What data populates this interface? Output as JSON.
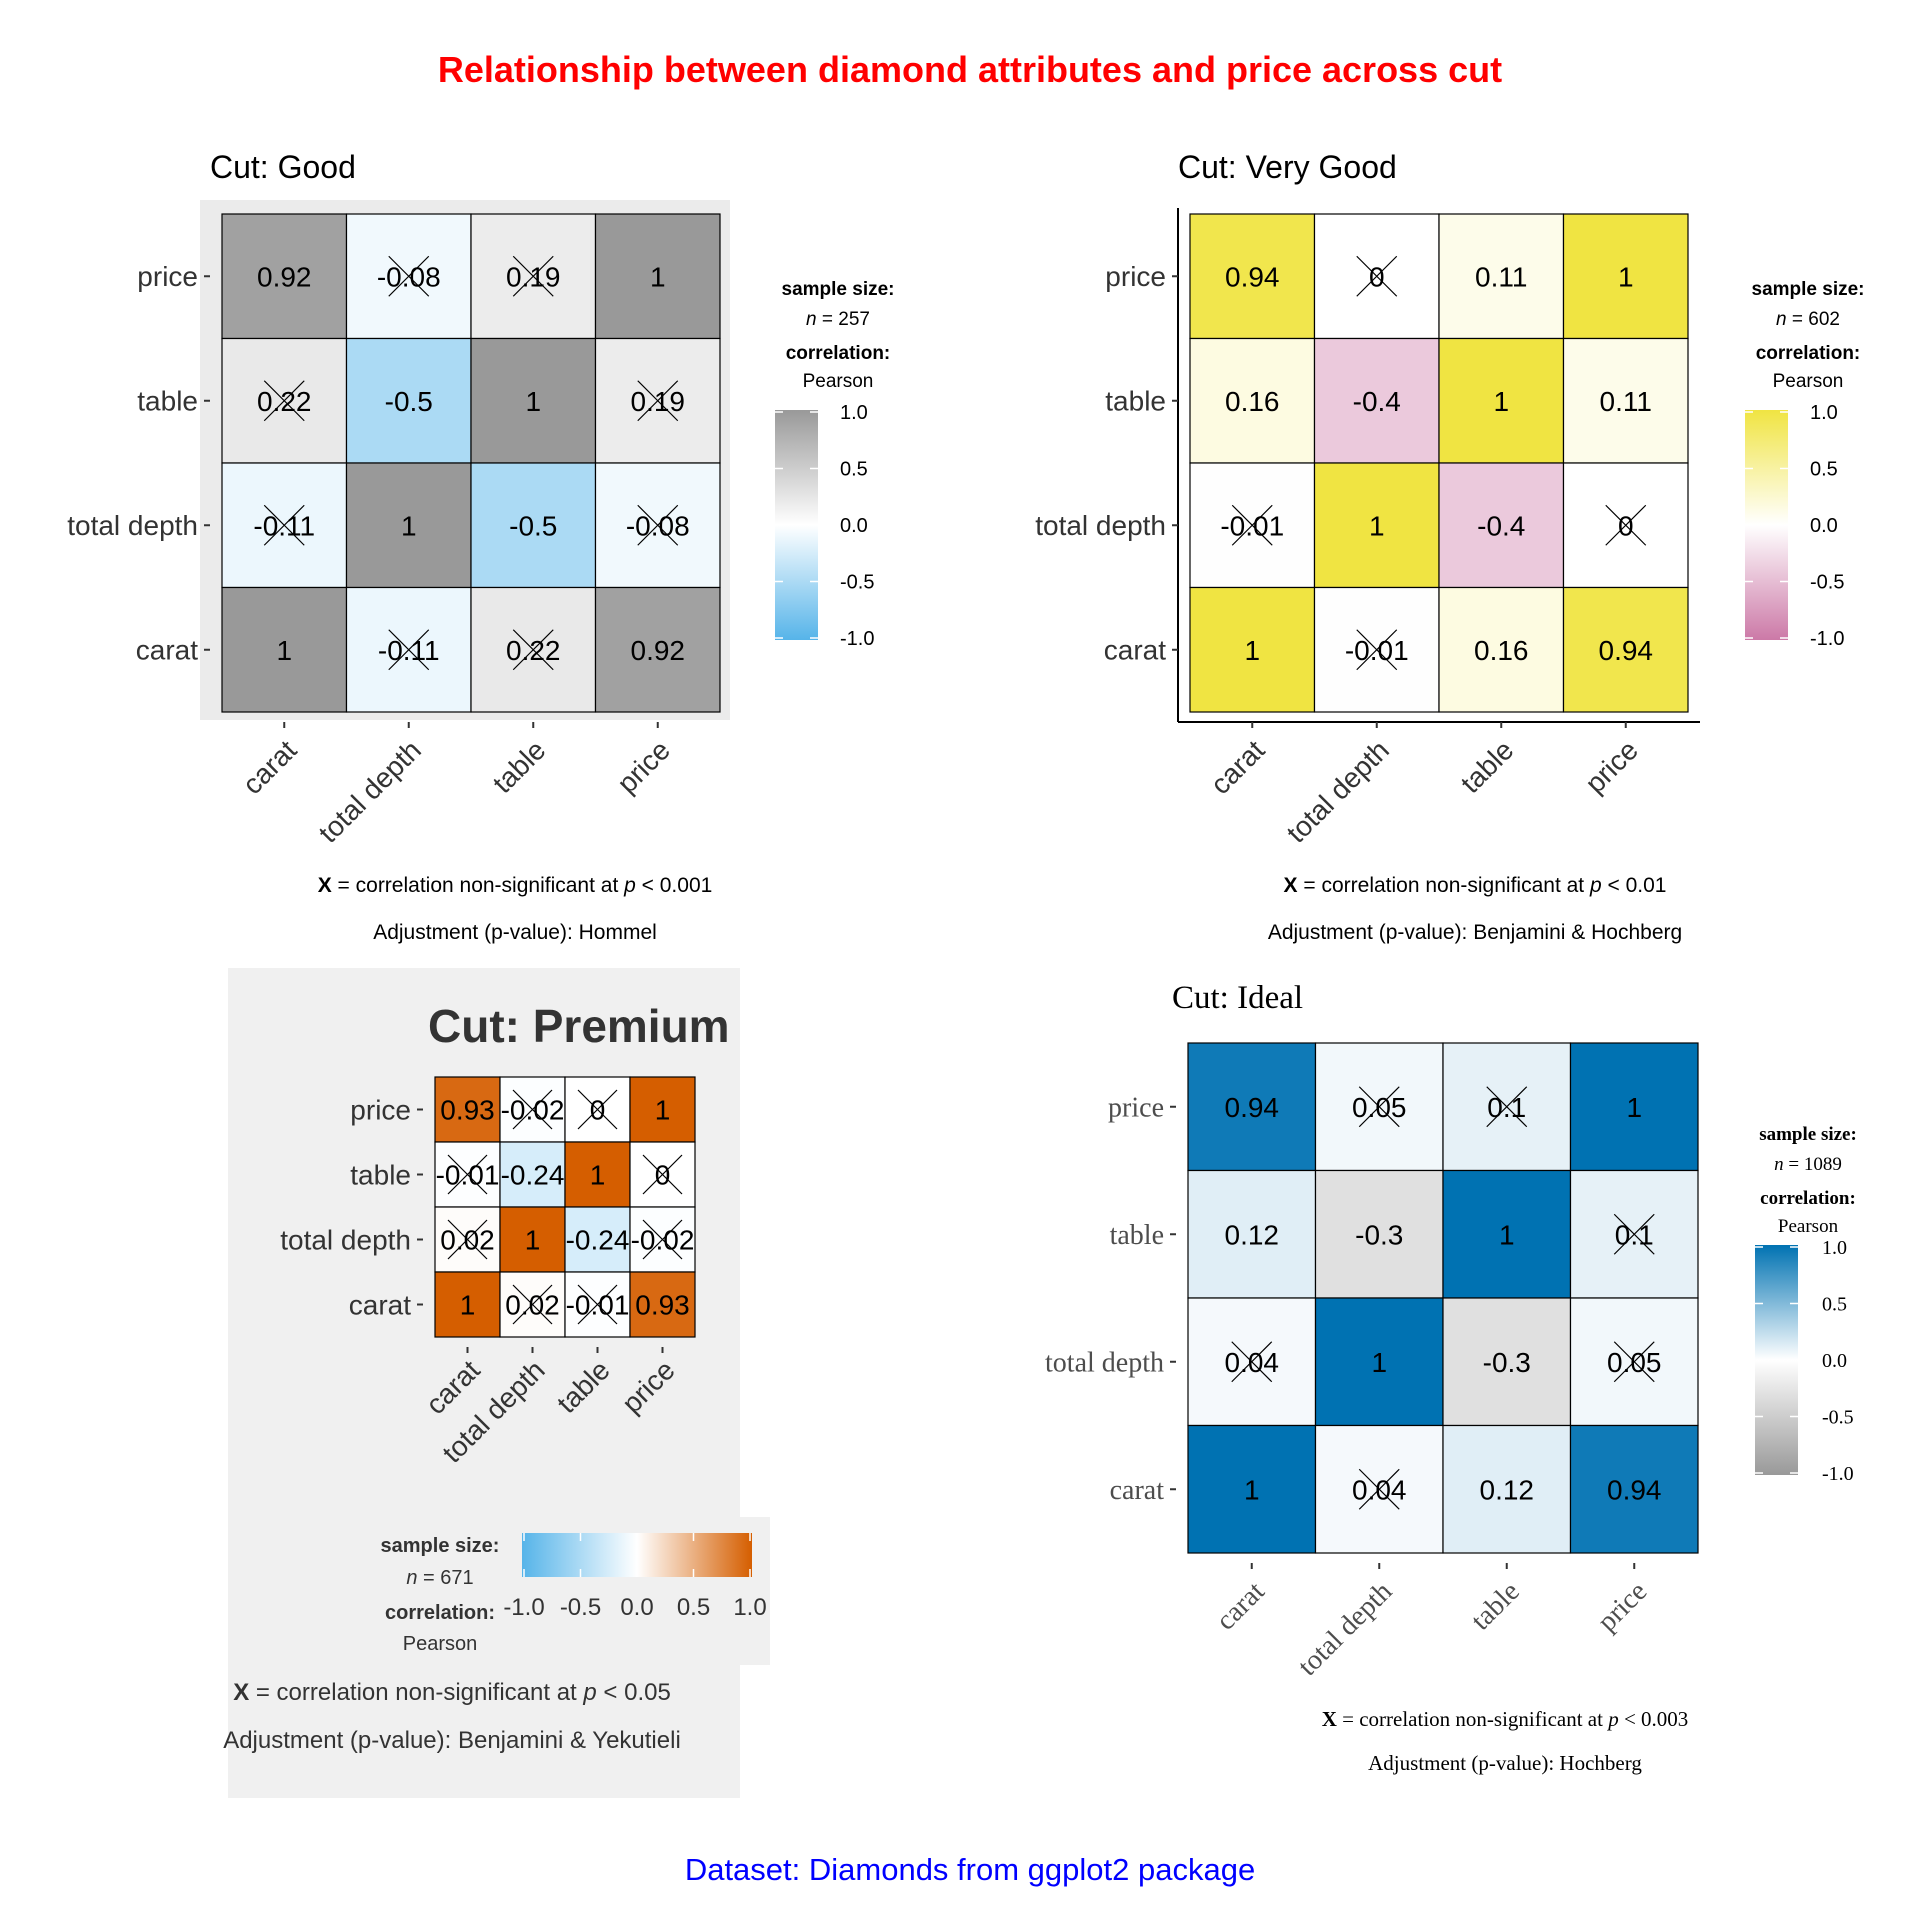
{
  "title": "Relationship between diamond attributes and price across cut",
  "caption": "Dataset: Diamonds from ggplot2 package",
  "colors": {
    "title": "#ff0000",
    "caption": "#0000ff"
  },
  "variables": [
    "carat",
    "total depth",
    "table",
    "price"
  ],
  "chart_data": [
    {
      "type": "heatmap",
      "title": "Cut: Good",
      "x": [
        "carat",
        "total depth",
        "table",
        "price"
      ],
      "y": [
        "carat",
        "total depth",
        "table",
        "price"
      ],
      "matrix": [
        [
          1,
          -0.11,
          0.22,
          0.92
        ],
        [
          -0.11,
          1,
          -0.5,
          -0.08
        ],
        [
          0.22,
          -0.5,
          1,
          0.19
        ],
        [
          0.92,
          -0.08,
          0.19,
          1
        ]
      ],
      "labels": [
        [
          "1",
          "-0.11",
          "0.22",
          "0.92"
        ],
        [
          "-0.11",
          "1",
          "-0.5",
          "-0.08"
        ],
        [
          "0.22",
          "-0.5",
          "1",
          "0.19"
        ],
        [
          "0.92",
          "-0.08",
          "0.19",
          "1"
        ]
      ],
      "nonsignificant": [
        [
          false,
          true,
          true,
          false
        ],
        [
          true,
          false,
          false,
          true
        ],
        [
          true,
          false,
          false,
          true
        ],
        [
          false,
          true,
          true,
          false
        ]
      ],
      "colors": {
        "low": "#56B4E9",
        "mid": "#FFFFFF",
        "high": "#999999"
      },
      "legend": {
        "sample_size_label": "sample size:",
        "n_label": "n",
        "n_value": "= 257",
        "correlation_label": "correlation:",
        "method": "Pearson",
        "ticks": [
          "1.0",
          "0.5",
          "0.0",
          "-0.5",
          "-1.0"
        ]
      },
      "caption_x_label": "X",
      "caption_text": "= correlation non-significant at",
      "caption_p": "p",
      "caption_threshold": "< 0.001",
      "adjustment": "Adjustment (p-value): Hommel"
    },
    {
      "type": "heatmap",
      "title": "Cut: Very Good",
      "x": [
        "carat",
        "total depth",
        "table",
        "price"
      ],
      "y": [
        "carat",
        "total depth",
        "table",
        "price"
      ],
      "matrix": [
        [
          1,
          -0.01,
          0.16,
          0.94
        ],
        [
          -0.01,
          1,
          -0.4,
          0
        ],
        [
          0.16,
          -0.4,
          1,
          0.11
        ],
        [
          0.94,
          0,
          0.11,
          1
        ]
      ],
      "labels": [
        [
          "1",
          "-0.01",
          "0.16",
          "0.94"
        ],
        [
          "-0.01",
          "1",
          "-0.4",
          "0"
        ],
        [
          "0.16",
          "-0.4",
          "1",
          "0.11"
        ],
        [
          "0.94",
          "0",
          "0.11",
          "1"
        ]
      ],
      "nonsignificant": [
        [
          false,
          true,
          false,
          false
        ],
        [
          true,
          false,
          false,
          true
        ],
        [
          false,
          false,
          false,
          false
        ],
        [
          false,
          true,
          false,
          false
        ]
      ],
      "colors": {
        "low": "#CC79A7",
        "mid": "#FFFFFF",
        "high": "#F0E442"
      },
      "legend": {
        "sample_size_label": "sample size:",
        "n_label": "n",
        "n_value": "= 602",
        "correlation_label": "correlation:",
        "method": "Pearson",
        "ticks": [
          "1.0",
          "0.5",
          "0.0",
          "-0.5",
          "-1.0"
        ]
      },
      "caption_x_label": "X",
      "caption_text": "= correlation non-significant at",
      "caption_p": "p",
      "caption_threshold": "< 0.01",
      "adjustment": "Adjustment (p-value): Benjamini & Hochberg"
    },
    {
      "type": "heatmap",
      "title": "Cut: Premium",
      "x": [
        "carat",
        "total depth",
        "table",
        "price"
      ],
      "y": [
        "carat",
        "total depth",
        "table",
        "price"
      ],
      "matrix": [
        [
          1,
          0.02,
          -0.01,
          0.93
        ],
        [
          0.02,
          1,
          -0.24,
          -0.02
        ],
        [
          -0.01,
          -0.24,
          1,
          0
        ],
        [
          0.93,
          -0.02,
          0,
          1
        ]
      ],
      "labels": [
        [
          "1",
          "0.02",
          "-0.01",
          "0.93"
        ],
        [
          "0.02",
          "1",
          "-0.24",
          "-0.02"
        ],
        [
          "-0.01",
          "-0.24",
          "1",
          "0"
        ],
        [
          "0.93",
          "-0.02",
          "0",
          "1"
        ]
      ],
      "nonsignificant": [
        [
          false,
          true,
          true,
          false
        ],
        [
          true,
          false,
          false,
          true
        ],
        [
          true,
          false,
          false,
          true
        ],
        [
          false,
          true,
          true,
          false
        ]
      ],
      "colors": {
        "low": "#56B4E9",
        "mid": "#FFFFFF",
        "high": "#D55E00"
      },
      "legend": {
        "sample_size_label": "sample size:",
        "n_label": "n",
        "n_value": "= 671",
        "correlation_label": "correlation:",
        "method": "Pearson",
        "ticks": [
          "-1.0",
          "-0.5",
          "0.0",
          "0.5",
          "1.0"
        ]
      },
      "caption_x_label": "X",
      "caption_text": "= correlation non-significant at",
      "caption_p": "p",
      "caption_threshold": "< 0.05",
      "adjustment": "Adjustment (p-value): Benjamini & Yekutieli"
    },
    {
      "type": "heatmap",
      "title": "Cut: Ideal",
      "x": [
        "carat",
        "total depth",
        "table",
        "price"
      ],
      "y": [
        "carat",
        "total depth",
        "table",
        "price"
      ],
      "matrix": [
        [
          1,
          0.04,
          0.12,
          0.94
        ],
        [
          0.04,
          1,
          -0.3,
          0.05
        ],
        [
          0.12,
          -0.3,
          1,
          0.1
        ],
        [
          0.94,
          0.05,
          0.1,
          1
        ]
      ],
      "labels": [
        [
          "1",
          "0.04",
          "0.12",
          "0.94"
        ],
        [
          "0.04",
          "1",
          "-0.3",
          "0.05"
        ],
        [
          "0.12",
          "-0.3",
          "1",
          "0.1"
        ],
        [
          "0.94",
          "0.05",
          "0.1",
          "1"
        ]
      ],
      "nonsignificant": [
        [
          false,
          true,
          false,
          false
        ],
        [
          true,
          false,
          false,
          true
        ],
        [
          false,
          false,
          false,
          true
        ],
        [
          false,
          true,
          true,
          false
        ]
      ],
      "colors": {
        "low": "#999999",
        "mid": "#FFFFFF",
        "high": "#0072B2"
      },
      "legend": {
        "sample_size_label": "sample size:",
        "n_label": "n",
        "n_value": "= 1089",
        "correlation_label": "correlation:",
        "method": "Pearson",
        "ticks": [
          "1.0",
          "0.5",
          "0.0",
          "-0.5",
          "-1.0"
        ]
      },
      "caption_x_label": "X",
      "caption_text": "= correlation non-significant at",
      "caption_p": "p",
      "caption_threshold": "< 0.003",
      "adjustment": "Adjustment (p-value): Hochberg"
    }
  ]
}
